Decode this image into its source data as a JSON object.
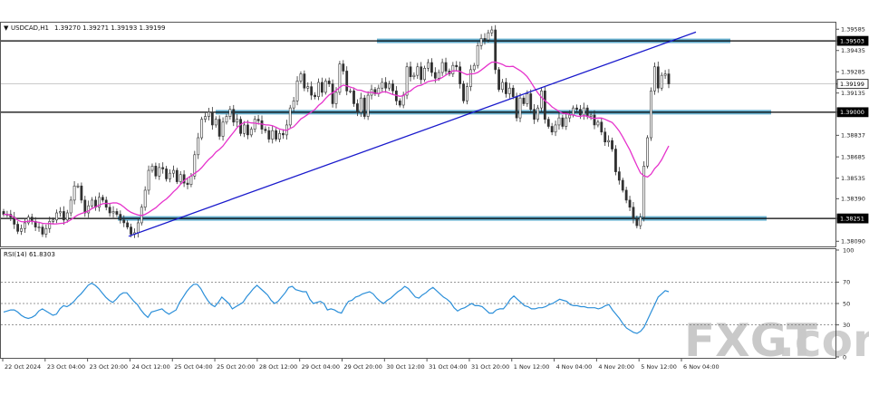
{
  "header": {
    "symbol_label": "USDCAD,H1",
    "ohlc_label": "1.39270 1.39271 1.39193 1.39199"
  },
  "watermark": {
    "part1": "FXGT",
    "part2": ".com"
  },
  "colors": {
    "candle": "#303030",
    "ma": "#e633cc",
    "rsi": "#2b8fd9",
    "trendline": "#1a1acc",
    "zone": "#4fa3c8",
    "level": "#000000"
  },
  "chart_data": [
    {
      "type": "candlestick",
      "title": "USDCAD,H1",
      "ylim": [
        1.3806,
        1.39625
      ],
      "y_ticks": [
        "1.39585",
        "1.39503",
        "1.39435",
        "1.39285",
        "1.39199",
        "1.39135",
        "1.39000",
        "1.38837",
        "1.38685",
        "1.38535",
        "1.38390",
        "1.38251",
        "1.38090"
      ],
      "highlighted_ticks": [
        "1.39503",
        "1.39199",
        "1.39000",
        "1.38251"
      ],
      "x_ticks": [
        "22 Oct 2024",
        "23 Oct 04:00",
        "23 Oct 20:00",
        "24 Oct 12:00",
        "25 Oct 04:00",
        "25 Oct 20:00",
        "28 Oct 12:00",
        "29 Oct 04:00",
        "29 Oct 20:00",
        "30 Oct 12:00",
        "31 Oct 04:00",
        "31 Oct 20:00",
        "1 Nov 12:00",
        "4 Nov 04:00",
        "4 Nov 20:00",
        "5 Nov 12:00",
        "6 Nov 04:00"
      ],
      "horizontal_levels": [
        1.39503,
        1.39,
        1.38251
      ],
      "price_series": [
        1.3828,
        1.3828,
        1.3826,
        1.3821,
        1.3816,
        1.3818,
        1.3822,
        1.3826,
        1.3823,
        1.3819,
        1.3819,
        1.3814,
        1.3818,
        1.3823,
        1.3824,
        1.3829,
        1.383,
        1.3824,
        1.3829,
        1.3838,
        1.3848,
        1.3848,
        1.3838,
        1.3829,
        1.3834,
        1.3838,
        1.3833,
        1.384,
        1.3838,
        1.3833,
        1.3829,
        1.383,
        1.3828,
        1.3824,
        1.3822,
        1.3819,
        1.3814,
        1.3815,
        1.3822,
        1.3833,
        1.3845,
        1.3859,
        1.3862,
        1.3855,
        1.3861,
        1.386,
        1.3853,
        1.3857,
        1.3859,
        1.3851,
        1.3856,
        1.385,
        1.3849,
        1.3855,
        1.387,
        1.3882,
        1.3895,
        1.3897,
        1.39,
        1.3891,
        1.3895,
        1.3883,
        1.3893,
        1.3897,
        1.3902,
        1.3893,
        1.3895,
        1.3885,
        1.3891,
        1.3884,
        1.3888,
        1.3895,
        1.3894,
        1.3888,
        1.3887,
        1.3881,
        1.3887,
        1.3881,
        1.3885,
        1.3884,
        1.3891,
        1.3903,
        1.3908,
        1.3922,
        1.3927,
        1.3917,
        1.3918,
        1.3912,
        1.3911,
        1.3921,
        1.3914,
        1.3922,
        1.392,
        1.3906,
        1.3914,
        1.3934,
        1.3929,
        1.3915,
        1.3915,
        1.3906,
        1.39,
        1.391,
        1.3897,
        1.3912,
        1.3916,
        1.3913,
        1.3917,
        1.3921,
        1.3917,
        1.392,
        1.3915,
        1.3908,
        1.3905,
        1.3912,
        1.3932,
        1.3925,
        1.3926,
        1.3932,
        1.3923,
        1.3931,
        1.3935,
        1.3928,
        1.3924,
        1.3928,
        1.3935,
        1.3929,
        1.3927,
        1.3933,
        1.3932,
        1.392,
        1.3908,
        1.3918,
        1.393,
        1.3933,
        1.3947,
        1.3952,
        1.3951,
        1.3956,
        1.3958,
        1.393,
        1.3916,
        1.3921,
        1.3913,
        1.3917,
        1.3911,
        1.3896,
        1.391,
        1.3906,
        1.3913,
        1.3902,
        1.3895,
        1.3903,
        1.3915,
        1.3895,
        1.389,
        1.3886,
        1.3891,
        1.3896,
        1.389,
        1.3896,
        1.3898,
        1.3903,
        1.3902,
        1.3898,
        1.3903,
        1.3897,
        1.3898,
        1.3891,
        1.3893,
        1.3886,
        1.3879,
        1.388,
        1.3874,
        1.3858,
        1.3852,
        1.3845,
        1.3838,
        1.3833,
        1.3825,
        1.382,
        1.3826,
        1.3862,
        1.3882,
        1.3915,
        1.3932,
        1.3917,
        1.3926,
        1.3927,
        1.392
      ],
      "series": [
        {
          "name": "RSI(14) 61.8303"
        }
      ]
    },
    {
      "type": "line",
      "title": "RSI(14) 61.8303",
      "ylim": [
        0,
        100
      ],
      "y_ticks": [
        "100",
        "70",
        "50",
        "30",
        "0"
      ],
      "levels": [
        70,
        50,
        30
      ],
      "rsi_values": [
        42,
        43,
        44,
        44,
        42,
        39,
        37,
        36,
        37,
        39,
        43,
        45,
        43,
        41,
        39,
        40,
        45,
        48,
        47,
        49,
        52,
        56,
        59,
        63,
        67,
        69,
        67,
        64,
        60,
        56,
        53,
        51,
        54,
        58,
        60,
        60,
        56,
        52,
        49,
        44,
        40,
        37,
        42,
        43,
        44,
        45,
        42,
        40,
        42,
        44,
        51,
        56,
        61,
        65,
        68,
        68,
        64,
        58,
        53,
        49,
        47,
        51,
        56,
        53,
        50,
        45,
        47,
        49,
        51,
        56,
        60,
        64,
        67,
        64,
        61,
        58,
        53,
        50,
        52,
        56,
        60,
        65,
        66,
        63,
        62,
        61,
        61,
        54,
        50,
        51,
        52,
        50,
        44,
        45,
        44,
        42,
        41,
        47,
        52,
        53,
        56,
        57,
        59,
        60,
        61,
        59,
        55,
        52,
        50,
        53,
        55,
        58,
        61,
        63,
        66,
        64,
        60,
        56,
        55,
        58,
        60,
        63,
        65,
        62,
        59,
        56,
        54,
        51,
        46,
        43,
        45,
        46,
        48,
        50,
        48,
        48,
        47,
        44,
        41,
        41,
        44,
        45,
        45,
        49,
        54,
        57,
        54,
        51,
        48,
        47,
        45,
        45,
        46,
        46,
        47,
        49,
        50,
        52,
        54,
        53,
        52,
        49,
        48,
        48,
        47,
        47,
        46,
        46,
        46,
        45,
        46,
        48,
        49,
        44,
        40,
        36,
        31,
        27,
        25,
        23,
        22,
        24,
        28,
        35,
        42,
        49,
        56,
        59,
        62,
        61
      ]
    }
  ]
}
